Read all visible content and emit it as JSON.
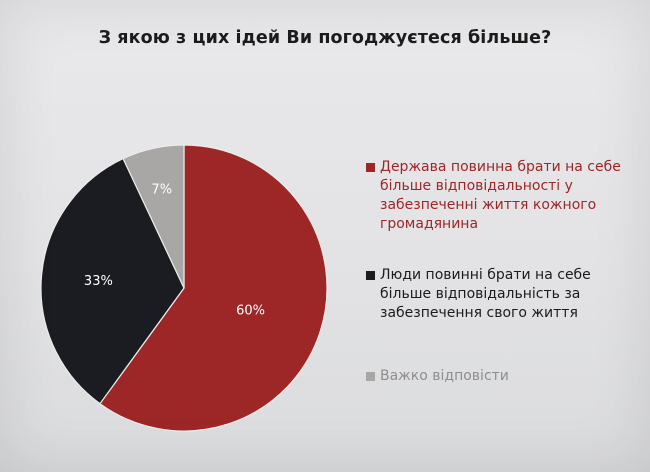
{
  "chart_data": {
    "type": "pie",
    "title": "З якою з цих ідей Ви погоджуєтеся більше?",
    "slices": [
      {
        "label": "Держава повинна брати на себе більше відповідальності у забезпеченні життя кожного громадянина",
        "value": 60,
        "value_label": "60%",
        "color": "#9d2627"
      },
      {
        "label": "Люди повинні брати на себе більше відповідальність за забезпечення свого життя",
        "value": 33,
        "value_label": "33%",
        "color": "#1b1c21"
      },
      {
        "label": "Важко відповісти",
        "value": 7,
        "value_label": "7%",
        "color": "#a8a7a5"
      }
    ],
    "legend_position": "right"
  }
}
